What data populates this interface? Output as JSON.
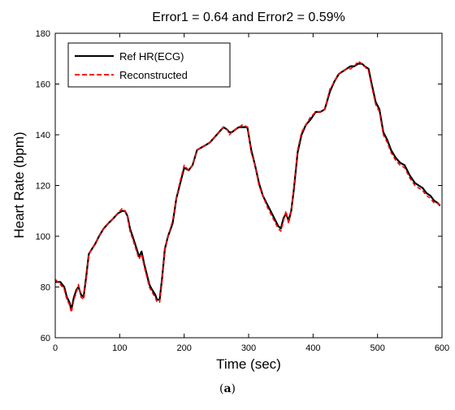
{
  "chart_data": {
    "type": "line",
    "title": "Error1 = 0.64 and Error2 = 0.59%",
    "xlabel": "Time (sec)",
    "ylabel": "Heart Rate (bpm)",
    "xlim": [
      0,
      600
    ],
    "ylim": [
      60,
      180
    ],
    "xticks": [
      0,
      100,
      200,
      300,
      400,
      500,
      600
    ],
    "yticks": [
      60,
      80,
      100,
      120,
      140,
      160,
      180
    ],
    "grid": false,
    "legend_position": "top-left",
    "series": [
      {
        "name": "Ref HR(ECG)",
        "color": "#000000",
        "style": "solid",
        "x": [
          0,
          8,
          14,
          18,
          22,
          25,
          29,
          33,
          36,
          40,
          44,
          48,
          52,
          57,
          62,
          68,
          75,
          82,
          90,
          97,
          104,
          108,
          112,
          116,
          120,
          125,
          130,
          134,
          138,
          142,
          146,
          150,
          155,
          158,
          162,
          166,
          170,
          175,
          182,
          188,
          193,
          200,
          207,
          213,
          220,
          227,
          234,
          240,
          247,
          254,
          261,
          267,
          270,
          274,
          279,
          285,
          291,
          298,
          304,
          310,
          316,
          322,
          328,
          334,
          340,
          346,
          350,
          354,
          358,
          362,
          366,
          370,
          376,
          382,
          389,
          396,
          404,
          411,
          418,
          426,
          433,
          440,
          446,
          452,
          458,
          464,
          470,
          476,
          480,
          486,
          491,
          497,
          503,
          509,
          515,
          521,
          528,
          535,
          542,
          550,
          558,
          564,
          570,
          576,
          582,
          588,
          594,
          597
        ],
        "values": [
          82,
          82,
          80,
          76,
          74,
          71,
          76,
          79,
          80,
          77,
          76,
          84,
          93,
          95,
          97,
          100,
          103,
          105,
          107,
          109,
          110,
          110,
          108,
          103,
          100,
          96,
          92,
          94,
          89,
          85,
          81,
          79,
          77,
          75,
          75,
          84,
          95,
          100,
          105,
          115,
          120,
          127,
          126,
          128,
          134,
          135,
          136,
          137,
          139,
          141,
          143,
          142,
          141,
          141,
          142,
          143,
          143,
          143,
          134,
          128,
          121,
          116,
          113,
          110,
          107,
          104,
          103,
          107,
          109,
          106,
          110,
          118,
          133,
          140,
          144,
          146,
          149,
          149,
          150,
          157,
          161,
          164,
          165,
          166,
          167,
          167,
          168,
          168,
          167,
          166,
          160,
          153,
          150,
          141,
          138,
          134,
          131,
          129,
          128,
          124,
          121,
          120,
          119,
          117,
          116,
          114,
          113,
          112
        ]
      },
      {
        "name": "Reconstructed",
        "color": "#ff0000",
        "style": "dashed",
        "x": [
          0,
          8,
          14,
          18,
          22,
          25,
          29,
          33,
          36,
          40,
          44,
          48,
          52,
          57,
          62,
          68,
          75,
          82,
          90,
          97,
          104,
          108,
          112,
          116,
          120,
          125,
          130,
          134,
          138,
          142,
          146,
          150,
          155,
          158,
          162,
          166,
          170,
          175,
          182,
          188,
          193,
          200,
          207,
          213,
          220,
          227,
          234,
          240,
          247,
          254,
          261,
          267,
          270,
          274,
          279,
          285,
          291,
          298,
          304,
          310,
          316,
          322,
          328,
          334,
          340,
          346,
          350,
          354,
          358,
          362,
          366,
          370,
          376,
          382,
          389,
          396,
          404,
          411,
          418,
          426,
          433,
          440,
          446,
          452,
          458,
          464,
          470,
          476,
          480,
          486,
          491,
          497,
          503,
          509,
          515,
          521,
          528,
          535,
          542,
          550,
          558,
          564,
          570,
          576,
          582,
          588,
          594,
          597
        ],
        "values": [
          83,
          81,
          79,
          75,
          73,
          70,
          75,
          78,
          81,
          76,
          75,
          83,
          93,
          95,
          97,
          100,
          103,
          105,
          107,
          109,
          111,
          110,
          108,
          102,
          99,
          95,
          91,
          93,
          88,
          84,
          80,
          78,
          76,
          74,
          74,
          83,
          95,
          100,
          106,
          115,
          121,
          128,
          126,
          128,
          134,
          135,
          136,
          137,
          139,
          141,
          143,
          142,
          140,
          141,
          142,
          143,
          144,
          143,
          133,
          128,
          120,
          116,
          112,
          109,
          106,
          103,
          102,
          106,
          110,
          105,
          110,
          119,
          134,
          141,
          144,
          147,
          149,
          149,
          150,
          158,
          161,
          164,
          165,
          166,
          166,
          167,
          169,
          168,
          167,
          165,
          159,
          152,
          149,
          140,
          137,
          133,
          130,
          128,
          127,
          123,
          120,
          119,
          118,
          116,
          115,
          113,
          113,
          112
        ]
      }
    ]
  },
  "caption": {
    "open": "(",
    "letter": "a",
    "close": ")"
  }
}
